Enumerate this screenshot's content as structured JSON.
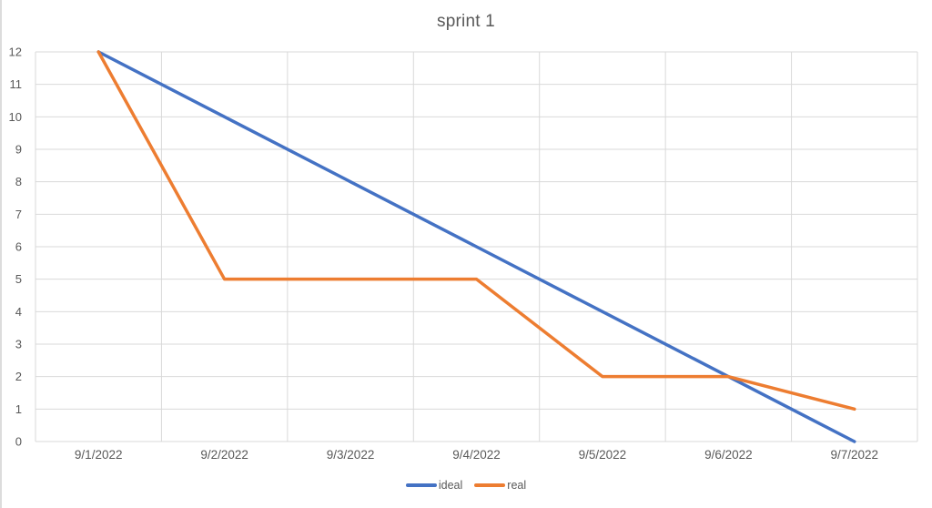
{
  "chart_data": {
    "type": "line",
    "title": "sprint 1",
    "categories": [
      "9/1/2022",
      "9/2/2022",
      "9/3/2022",
      "9/4/2022",
      "9/5/2022",
      "9/6/2022",
      "9/7/2022"
    ],
    "series": [
      {
        "name": "ideal",
        "color": "#4472C4",
        "values": [
          12,
          10,
          8,
          6,
          4,
          2,
          0
        ]
      },
      {
        "name": "real",
        "color": "#ED7D31",
        "values": [
          12,
          5,
          5,
          5,
          2,
          2,
          1
        ]
      }
    ],
    "xlabel": "",
    "ylabel": "",
    "ylim": [
      0,
      12
    ],
    "ytick_step": 1,
    "yticks": [
      0,
      1,
      2,
      3,
      4,
      5,
      6,
      7,
      8,
      9,
      10,
      11,
      12
    ],
    "grid": true,
    "gridline_color": "#d9d9d9",
    "axis_text_color": "#595959",
    "title_color": "#595959",
    "legend_position": "bottom-center",
    "legend_entries": [
      "ideal",
      "real"
    ],
    "background_color": "#ffffff"
  }
}
